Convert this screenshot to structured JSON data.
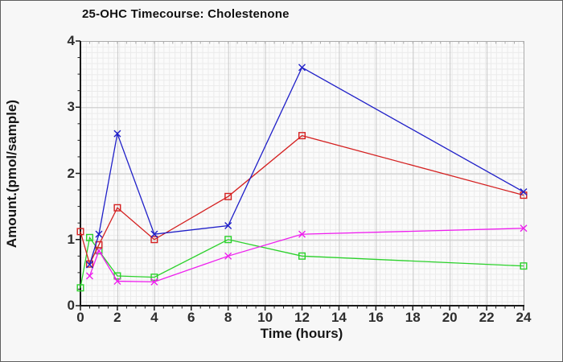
{
  "window": {
    "background_color": "#f7f7f7",
    "border_color": "#5f5f5f",
    "plot_background_color": "#fbfbfb",
    "mesh_grid_color": "#ebebeb",
    "major_grid_color": "#c9c9c9",
    "axis_color": "#1a1a1a",
    "frame_color": "#ababab",
    "tick_label_color": "#2e2e2e"
  },
  "chart_data": {
    "type": "line",
    "title": "25-OHC Timecourse: Cholestenone",
    "xlabel": "Time (hours)",
    "ylabel": "Amount.(pmol/sample)",
    "xlim": [
      0,
      24
    ],
    "ylim": [
      0,
      4
    ],
    "x_ticks": [
      0,
      2,
      4,
      6,
      8,
      10,
      12,
      14,
      16,
      18,
      20,
      22,
      24
    ],
    "y_ticks": [
      0,
      1,
      2,
      3,
      4
    ],
    "x_minor_step": 0.5,
    "y_minor_step": 0.25,
    "grid": "fine mesh + major gridlines at labeled ticks",
    "legend": "none",
    "series": [
      {
        "name": "green",
        "color": "#2bd12b",
        "marker": "square",
        "points": [
          [
            0,
            0.27
          ],
          [
            0.5,
            1.03
          ],
          [
            1,
            0.83
          ],
          [
            2,
            0.45
          ],
          [
            4,
            0.43
          ],
          [
            8,
            1.0
          ],
          [
            12,
            0.75
          ],
          [
            24,
            0.6
          ]
        ]
      },
      {
        "name": "magenta",
        "color": "#ee1dee",
        "marker": "x",
        "points": [
          [
            0.5,
            0.45
          ],
          [
            1,
            0.83
          ],
          [
            2,
            0.37
          ],
          [
            4,
            0.36
          ],
          [
            8,
            0.75
          ],
          [
            12,
            1.08
          ],
          [
            24,
            1.17
          ]
        ]
      },
      {
        "name": "red",
        "color": "#d41f1f",
        "marker": "square",
        "points": [
          [
            0,
            1.12
          ],
          [
            0.5,
            0.63
          ],
          [
            1,
            0.92
          ],
          [
            2,
            1.48
          ],
          [
            4,
            1.0
          ],
          [
            8,
            1.65
          ],
          [
            12,
            2.57
          ],
          [
            24,
            1.67
          ]
        ]
      },
      {
        "name": "blue",
        "color": "#1f1fc8",
        "marker": "x",
        "points": [
          [
            0.5,
            0.62
          ],
          [
            1,
            1.08
          ],
          [
            2,
            2.6
          ],
          [
            4,
            1.08
          ],
          [
            8,
            1.21
          ],
          [
            12,
            3.6
          ],
          [
            24,
            1.72
          ]
        ]
      }
    ]
  }
}
